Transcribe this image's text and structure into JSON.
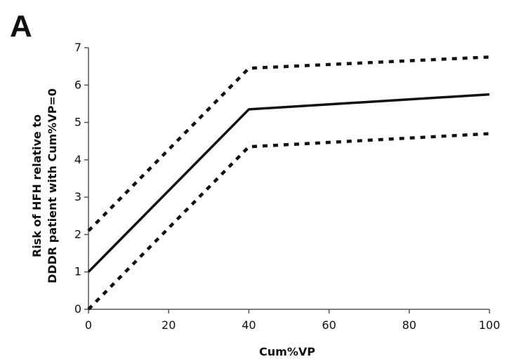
{
  "panel_label": "A",
  "chart_data": {
    "type": "line",
    "xlabel": "Cum%VP",
    "ylabel_lines": [
      "Risk of HFH relative to",
      "DDDR patient with Cum%VP=0"
    ],
    "xlim": [
      0,
      100
    ],
    "ylim": [
      0,
      7
    ],
    "x_ticks": [
      0,
      20,
      40,
      60,
      80,
      100
    ],
    "y_ticks": [
      0,
      1,
      2,
      3,
      4,
      5,
      6,
      7
    ],
    "x_tick_labels": [
      "0",
      "20",
      "40",
      "60",
      "80",
      "100"
    ],
    "y_tick_labels": [
      "0",
      "1",
      "2",
      "3",
      "4",
      "5",
      "6",
      "7"
    ],
    "grid": false,
    "legend": "none",
    "series": [
      {
        "x": [
          0,
          40,
          100
        ],
        "y": [
          1.0,
          5.35,
          5.75
        ],
        "style": "solid",
        "color": "#111111"
      },
      {
        "x": [
          0,
          40,
          100
        ],
        "y": [
          2.1,
          6.45,
          6.75
        ],
        "style": "dotted",
        "color": "#111111"
      },
      {
        "x": [
          0,
          40,
          100
        ],
        "y": [
          0.0,
          4.35,
          4.7
        ],
        "style": "dotted",
        "color": "#111111"
      }
    ]
  }
}
